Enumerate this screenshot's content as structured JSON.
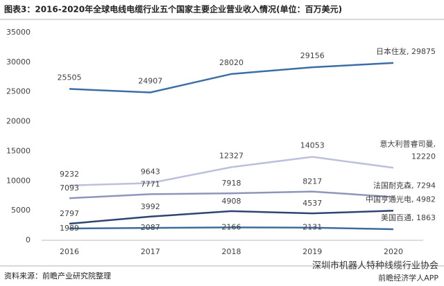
{
  "chart_data": {
    "type": "line",
    "title": "图表3：2016-2020年全球电线电缆行业五个国家主要企业营业收入情况(单位：百万美元)",
    "source": "资料来源：前瞻产业研究院整理",
    "watermark": [
      "深圳市机器人特种线缆行业协会",
      "前瞻经济学人APP"
    ],
    "categories": [
      "2016",
      "2017",
      "2018",
      "2019",
      "2020"
    ],
    "ylim": [
      0,
      35000
    ],
    "yticks": [
      0,
      5000,
      10000,
      15000,
      20000,
      25000,
      30000,
      35000
    ],
    "grid": false,
    "series": [
      {
        "color": "#3a6ea5",
        "values": [
          25505,
          24907,
          28020,
          29156,
          29875
        ],
        "value_labels": [
          "25505",
          "24907",
          "28020",
          "29156",
          "日本住友, 29875"
        ]
      },
      {
        "color": "#bcc0dc",
        "values": [
          9232,
          9643,
          12327,
          14053,
          12220
        ],
        "value_labels": [
          "9232",
          "9643",
          "12327",
          "14053",
          "意大利普睿司曼, 12220"
        ]
      },
      {
        "color": "#8d95bb",
        "values": [
          7093,
          7771,
          7918,
          8217,
          7294
        ],
        "value_labels": [
          "7093",
          "7771",
          "7918",
          "8217",
          "法国耐克森, 7294"
        ]
      },
      {
        "color": "#2c466f",
        "values": [
          2797,
          3992,
          4908,
          4537,
          4982
        ],
        "value_labels": [
          "2797",
          "3992",
          "4908",
          "4537",
          "中国亨通光电, 4982"
        ]
      },
      {
        "color": "#3d6c9c",
        "values": [
          1989,
          2087,
          2166,
          2131,
          1863
        ],
        "value_labels": [
          "1989",
          "2087",
          "2166",
          "2131",
          "美国百通, 1863"
        ]
      }
    ]
  }
}
